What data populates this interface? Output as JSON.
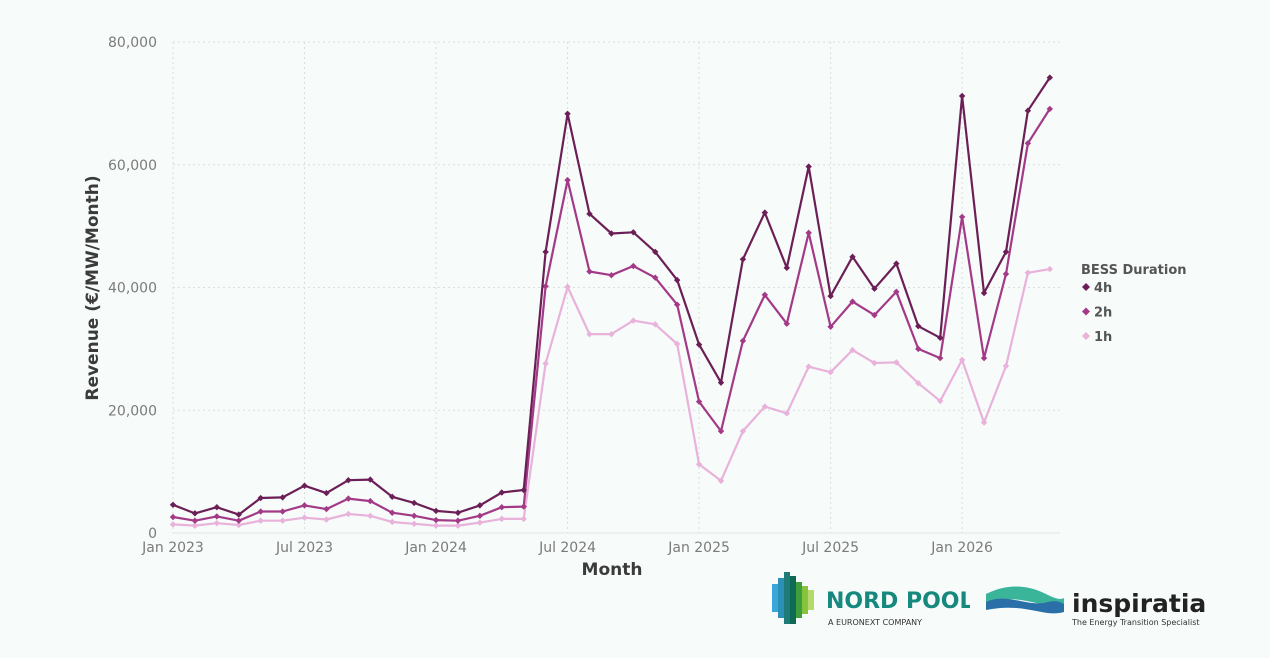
{
  "chart_data": {
    "type": "line",
    "xlabel": "Month",
    "ylabel": "Revenue (€/MW/Month)",
    "x_start": "Jan 2023",
    "x_ticks": [
      "Jan 2023",
      "Jul 2023",
      "Jan 2024",
      "Jul 2024",
      "Jan 2025",
      "Jul 2025",
      "Jan 2026"
    ],
    "y_ticks": [
      "0",
      "20,000",
      "40,000",
      "60,000",
      "80,000"
    ],
    "ylim": [
      0,
      80000
    ],
    "grid": true,
    "legend_title": "BESS Duration",
    "legend_position": "right",
    "series": [
      {
        "name": "4h",
        "color": "#6b1f56",
        "values": [
          4600,
          3200,
          4200,
          3000,
          5700,
          5800,
          7700,
          6500,
          8600,
          8700,
          5900,
          4900,
          3600,
          3300,
          4500,
          6600,
          7000,
          45800,
          68300,
          52000,
          48800,
          49000,
          45800,
          41200,
          30700,
          24500,
          44600,
          52200,
          43200,
          59700,
          38600,
          45000,
          39800,
          43900,
          33700,
          31800,
          71200,
          39100,
          45800,
          68800,
          74200
        ]
      },
      {
        "name": "2h",
        "color": "#a33a87",
        "values": [
          2600,
          2000,
          2700,
          2000,
          3500,
          3500,
          4500,
          3900,
          5600,
          5200,
          3300,
          2800,
          2100,
          2000,
          2800,
          4200,
          4300,
          40200,
          57500,
          42600,
          42000,
          43500,
          41600,
          37200,
          21400,
          16600,
          31300,
          38800,
          34100,
          48900,
          33600,
          37700,
          35500,
          39300,
          30000,
          28500,
          51500,
          28500,
          42200,
          63500,
          69100
        ]
      },
      {
        "name": "1h",
        "color": "#e8b2da",
        "values": [
          1400,
          1200,
          1600,
          1300,
          2000,
          2000,
          2500,
          2200,
          3100,
          2800,
          1800,
          1500,
          1200,
          1200,
          1700,
          2300,
          2300,
          27600,
          40100,
          32400,
          32400,
          34600,
          34000,
          30800,
          11200,
          8500,
          16600,
          20600,
          19500,
          27100,
          26200,
          29800,
          27700,
          27800,
          24400,
          21500,
          28200,
          18000,
          27200,
          42400,
          43000
        ]
      }
    ]
  },
  "logos": {
    "nordpool": {
      "name": "NORD POOL",
      "sub": "A EURONEXT COMPANY"
    },
    "inspiratia": {
      "name": "inspiratia",
      "sub": "The Energy Transition Specialist"
    }
  }
}
